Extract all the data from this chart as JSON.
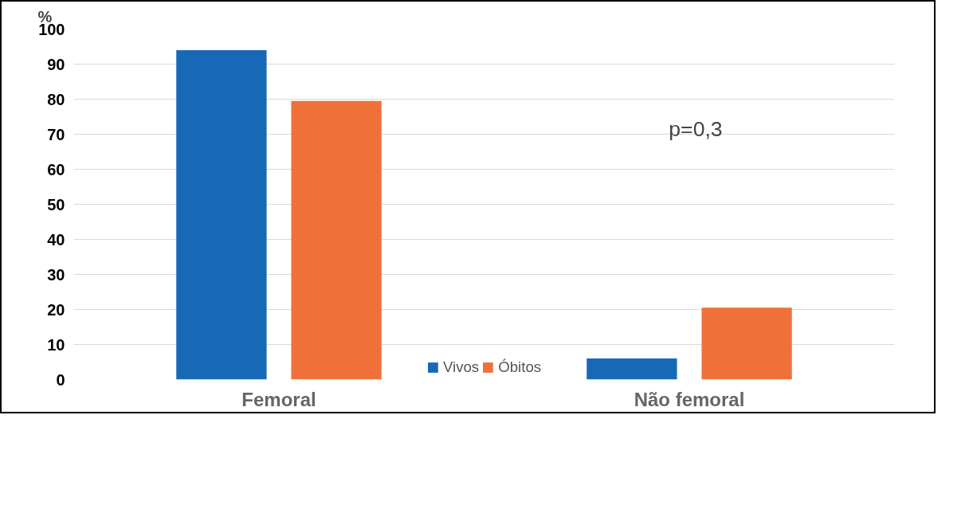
{
  "chart_data": {
    "type": "bar",
    "categories": [
      "Femoral",
      "Não femoral"
    ],
    "ylabel": "%",
    "series": [
      {
        "name": "Vivos",
        "color": "#1769b5",
        "values": [
          94,
          6
        ]
      },
      {
        "name": "Óbitos",
        "color": "#f0703a",
        "values": [
          79.5,
          20.5
        ]
      }
    ],
    "ylim": [
      0,
      100
    ],
    "yticks": [
      0,
      10,
      20,
      30,
      40,
      50,
      60,
      70,
      80,
      90,
      100
    ],
    "grid": "y",
    "legend": "bottom",
    "annotations": [
      "p=0,3"
    ]
  }
}
